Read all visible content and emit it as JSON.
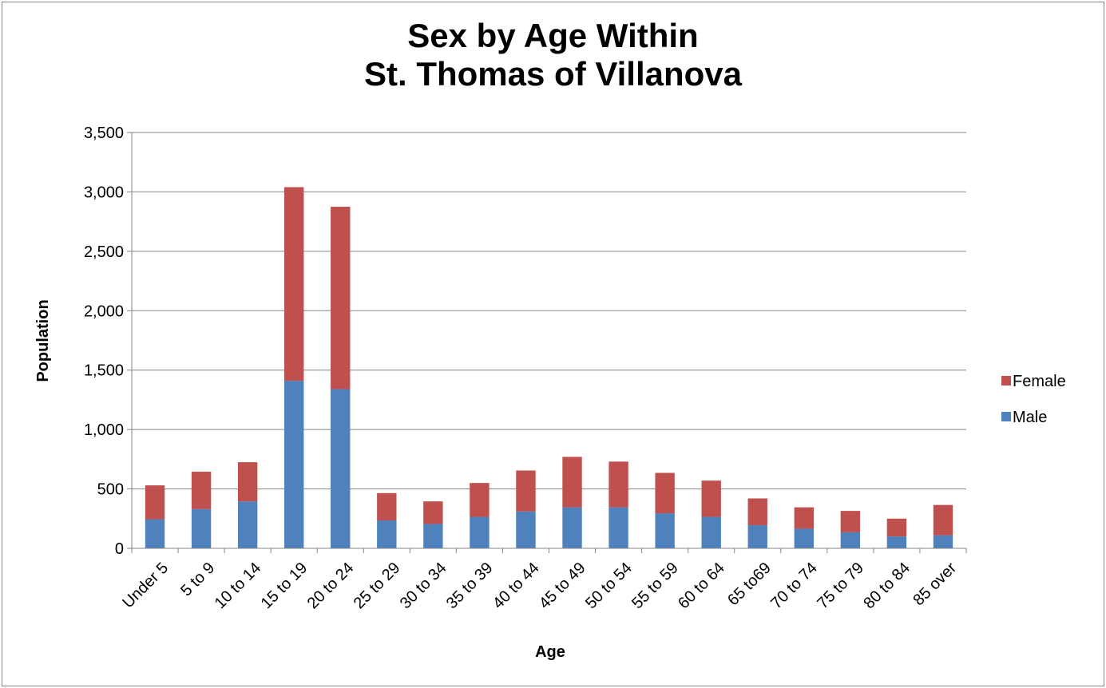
{
  "chart_data": {
    "type": "bar",
    "stacked": true,
    "title_line1": "Sex by Age Within",
    "title_line2": "St. Thomas of Villanova",
    "xlabel": "Age",
    "ylabel": "Population",
    "ylim": [
      0,
      3500
    ],
    "yticks": [
      0,
      500,
      1000,
      1500,
      2000,
      2500,
      3000,
      3500
    ],
    "ytick_labels": [
      "0",
      "500",
      "1,000",
      "1,500",
      "2,000",
      "2,500",
      "3,000",
      "3,500"
    ],
    "grid": true,
    "legend_position": "right",
    "categories": [
      "Under 5",
      "5 to 9",
      "10 to 14",
      "15 to 19",
      "20 to 24",
      "25 to 29",
      "30 to 34",
      "35 to 39",
      "40 to 44",
      "45 to 49",
      "50 to 54",
      "55 to 59",
      "60 to 64",
      "65 to69",
      "70 to 74",
      "75 to 79",
      "80 to 84",
      "85 over"
    ],
    "series": [
      {
        "name": "Male",
        "color": "#4F81BD",
        "values": [
          245,
          330,
          395,
          1410,
          1340,
          235,
          205,
          265,
          310,
          345,
          345,
          295,
          265,
          195,
          165,
          135,
          100,
          110
        ]
      },
      {
        "name": "Female",
        "color": "#C0504D",
        "values": [
          285,
          315,
          330,
          1630,
          1535,
          230,
          190,
          285,
          345,
          425,
          385,
          340,
          305,
          225,
          180,
          180,
          150,
          255
        ]
      }
    ],
    "legend_order": [
      "Female",
      "Male"
    ]
  }
}
